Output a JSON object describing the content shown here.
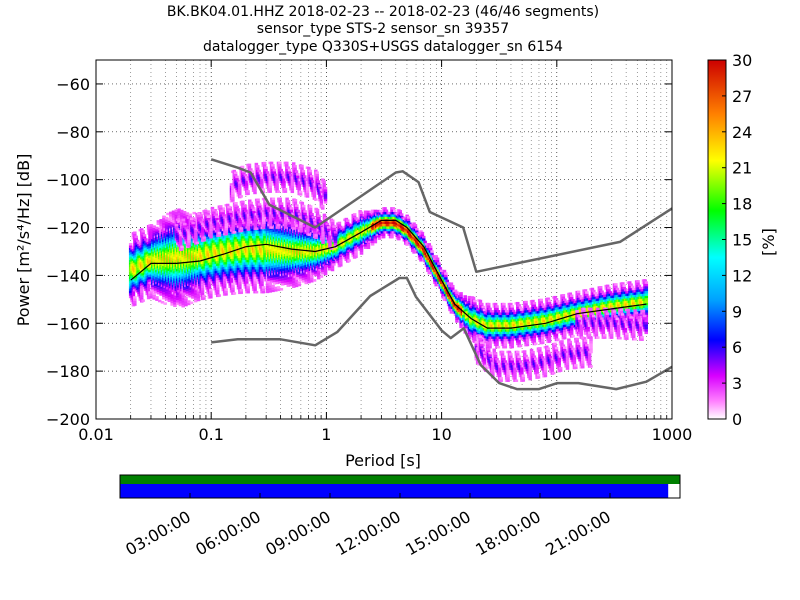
{
  "chart_data": {
    "type": "heatmap",
    "title_lines": [
      "BK.BK04.01.HHZ   2018-02-23 -- 2018-02-23  (46/46 segments)",
      "sensor_type STS-2 sensor_sn 39357",
      "datalogger_type Q330S+USGS datalogger_sn 6154"
    ],
    "xlabel": "Period [s]",
    "ylabel": "Power [m²/s⁴/Hz] [dB]",
    "x_scale": "log",
    "xlim": [
      0.01,
      1000
    ],
    "ylim": [
      -200,
      -50
    ],
    "x_ticks": [
      {
        "value": 0.01,
        "label": "0.01"
      },
      {
        "value": 0.1,
        "label": "0.1"
      },
      {
        "value": 1,
        "label": "1"
      },
      {
        "value": 10,
        "label": "10"
      },
      {
        "value": 100,
        "label": "100"
      },
      {
        "value": 1000,
        "label": "1000"
      }
    ],
    "y_ticks": [
      {
        "value": -60,
        "label": "−60"
      },
      {
        "value": -80,
        "label": "−80"
      },
      {
        "value": -100,
        "label": "−100"
      },
      {
        "value": -120,
        "label": "−120"
      },
      {
        "value": -140,
        "label": "−140"
      },
      {
        "value": -160,
        "label": "−160"
      },
      {
        "value": -180,
        "label": "−180"
      },
      {
        "value": -200,
        "label": "−200"
      }
    ],
    "grid": "dotted",
    "colorbar": {
      "label": "[%]",
      "range": [
        0,
        30
      ],
      "ticks": [
        "0",
        "3",
        "6",
        "9",
        "12",
        "15",
        "18",
        "21",
        "24",
        "27",
        "30"
      ]
    },
    "noise_models": [
      {
        "name": "high",
        "points": [
          [
            0.1,
            -91.5
          ],
          [
            0.17,
            -95
          ],
          [
            0.22,
            -97
          ],
          [
            0.32,
            -110.5
          ],
          [
            0.8,
            -120
          ],
          [
            4.0,
            -97
          ],
          [
            4.6,
            -96.5
          ],
          [
            6.3,
            -101
          ],
          [
            7.9,
            -113.5
          ],
          [
            15.4,
            -120
          ],
          [
            20,
            -138.5
          ],
          [
            354,
            -126
          ],
          [
            1000,
            -112
          ]
        ]
      },
      {
        "name": "low",
        "points": [
          [
            0.1,
            -168
          ],
          [
            0.17,
            -166.7
          ],
          [
            0.4,
            -166.7
          ],
          [
            0.8,
            -169.2
          ],
          [
            1.24,
            -163.7
          ],
          [
            2.4,
            -148.6
          ],
          [
            4.3,
            -141.1
          ],
          [
            5.0,
            -141.1
          ],
          [
            6.0,
            -149
          ],
          [
            10,
            -163
          ],
          [
            12,
            -166.2
          ],
          [
            15.6,
            -162.1
          ],
          [
            21.9,
            -177.5
          ],
          [
            31.6,
            -185
          ],
          [
            45,
            -187.5
          ],
          [
            70,
            -187.5
          ],
          [
            101,
            -185
          ],
          [
            154,
            -185
          ],
          [
            328,
            -187.5
          ],
          [
            600,
            -184.4
          ],
          [
            1000,
            -178.2
          ]
        ]
      }
    ],
    "median": {
      "points": [
        [
          0.02,
          -142
        ],
        [
          0.03,
          -135
        ],
        [
          0.05,
          -135
        ],
        [
          0.08,
          -134
        ],
        [
          0.13,
          -131
        ],
        [
          0.2,
          -128
        ],
        [
          0.3,
          -127
        ],
        [
          0.5,
          -129
        ],
        [
          0.8,
          -130
        ],
        [
          1.2,
          -128
        ],
        [
          2,
          -122
        ],
        [
          3,
          -117
        ],
        [
          4,
          -117
        ],
        [
          5,
          -120
        ],
        [
          7,
          -128
        ],
        [
          10,
          -142
        ],
        [
          13,
          -152
        ],
        [
          18,
          -158
        ],
        [
          25,
          -162
        ],
        [
          40,
          -162
        ],
        [
          80,
          -160
        ],
        [
          150,
          -156
        ],
        [
          300,
          -154
        ],
        [
          600,
          -152
        ]
      ]
    },
    "density_bands": [
      {
        "name": "main",
        "points": [
          [
            0.02,
            -138,
            5
          ],
          [
            0.03,
            -134,
            5
          ],
          [
            0.05,
            -133,
            7
          ],
          [
            0.08,
            -132,
            6
          ],
          [
            0.13,
            -130,
            6
          ],
          [
            0.2,
            -129,
            6
          ],
          [
            0.3,
            -129,
            6
          ],
          [
            0.5,
            -130,
            5
          ],
          [
            0.8,
            -130,
            4
          ],
          [
            1.2,
            -128,
            3
          ],
          [
            2,
            -122,
            3
          ],
          [
            3,
            -118,
            2
          ],
          [
            4,
            -118,
            2
          ],
          [
            5,
            -121,
            2
          ],
          [
            7,
            -129,
            2
          ],
          [
            10,
            -142,
            2
          ],
          [
            13,
            -152,
            2
          ],
          [
            18,
            -158,
            3
          ],
          [
            25,
            -161,
            3
          ],
          [
            40,
            -161,
            3
          ],
          [
            80,
            -159,
            3
          ],
          [
            150,
            -156,
            3
          ],
          [
            300,
            -153,
            3
          ],
          [
            600,
            -151,
            3
          ]
        ]
      },
      {
        "name": "upper",
        "points": [
          [
            0.05,
            -124,
            2
          ],
          [
            0.1,
            -118,
            2
          ],
          [
            0.2,
            -115,
            2
          ],
          [
            0.3,
            -114,
            2
          ],
          [
            0.5,
            -114,
            2
          ],
          [
            0.8,
            -118,
            2
          ],
          [
            1.2,
            -124,
            2
          ]
        ]
      },
      {
        "name": "upper2",
        "points": [
          [
            0.15,
            -103,
            2
          ],
          [
            0.2,
            -100,
            2
          ],
          [
            0.3,
            -99,
            2
          ],
          [
            0.5,
            -99,
            2
          ],
          [
            0.8,
            -102,
            2
          ],
          [
            1.0,
            -108,
            2
          ]
        ]
      },
      {
        "name": "lower",
        "points": [
          [
            20,
            -170,
            2
          ],
          [
            30,
            -178,
            2
          ],
          [
            50,
            -178,
            2
          ],
          [
            80,
            -176,
            2
          ],
          [
            120,
            -173,
            2
          ],
          [
            200,
            -172,
            2
          ]
        ]
      },
      {
        "name": "lower2",
        "points": [
          [
            150,
            -160,
            2
          ],
          [
            300,
            -160,
            2
          ],
          [
            600,
            -161,
            2
          ]
        ]
      }
    ]
  },
  "timeline": {
    "ticks": [
      "03:00:00",
      "06:00:00",
      "09:00:00",
      "12:00:00",
      "15:00:00",
      "18:00:00",
      "21:00:00"
    ],
    "coverage_fraction": 0.979,
    "colors": {
      "data": "#0000ff",
      "segments": "#008000"
    }
  }
}
